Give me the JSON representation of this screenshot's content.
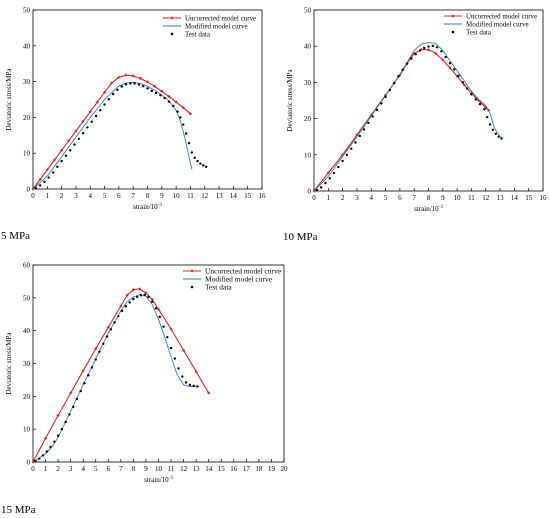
{
  "colors": {
    "uncorrected": "#e8201c",
    "modified": "#2e7bbf",
    "test": "#000000",
    "axis": "#000000"
  },
  "chart_data": [
    {
      "type": "line",
      "caption": "5 MPa",
      "xlabel": "strain/10",
      "xlabel_sup": "-3",
      "ylabel": "Deviatoric stress/MPa",
      "xlim": [
        0,
        16
      ],
      "ylim": [
        0,
        50
      ],
      "xticks": [
        0,
        1,
        2,
        3,
        4,
        5,
        6,
        7,
        8,
        9,
        10,
        11,
        12,
        13,
        14,
        15,
        16
      ],
      "yticks": [
        0,
        10,
        20,
        30,
        40,
        50
      ],
      "grid": false,
      "legend_position": "top-right",
      "series": [
        {
          "name": "Uncorrected model curve",
          "style": "line-diamond",
          "x": [
            0,
            0.5,
            1,
            1.5,
            2,
            2.5,
            3,
            3.5,
            4,
            4.5,
            5,
            5.5,
            6,
            6.5,
            7,
            7.5,
            8,
            8.5,
            9,
            9.5,
            10,
            10.5,
            11
          ],
          "y": [
            0,
            2.7,
            5.4,
            8.1,
            10.8,
            13.5,
            16.2,
            18.9,
            21.6,
            24.3,
            27,
            29.6,
            31.2,
            31.8,
            31.6,
            30.9,
            29.9,
            28.7,
            27.3,
            25.8,
            24.3,
            22.7,
            21
          ]
        },
        {
          "name": "Modified model curve",
          "style": "line",
          "x": [
            0,
            1,
            2,
            3,
            4,
            5,
            6,
            6.5,
            7,
            7.5,
            8,
            8.5,
            9,
            9.5,
            10,
            10.3,
            10.6,
            10.9,
            11.1
          ],
          "y": [
            0,
            3.6,
            9,
            14.5,
            20,
            25,
            28.8,
            29.6,
            29.8,
            29.5,
            28.7,
            27.6,
            26.2,
            24.6,
            22,
            19,
            14.5,
            9,
            5.5
          ]
        },
        {
          "name": "Test data",
          "style": "dots",
          "x": [
            0.2,
            0.5,
            0.8,
            1.1,
            1.4,
            1.7,
            2,
            2.3,
            2.6,
            2.9,
            3.2,
            3.5,
            3.8,
            4.1,
            4.4,
            4.7,
            5,
            5.3,
            5.6,
            5.9,
            6.2,
            6.5,
            6.8,
            7.1,
            7.4,
            7.7,
            8,
            8.3,
            8.6,
            8.9,
            9.2,
            9.5,
            9.8,
            10.1,
            10.3,
            10.5,
            10.7,
            10.9,
            11.1,
            11.3,
            11.5,
            11.7,
            11.9,
            12.1
          ],
          "y": [
            0.3,
            1,
            2,
            3.2,
            4.6,
            6.2,
            7.8,
            9.3,
            10.8,
            12.4,
            14,
            15.6,
            17.2,
            18.8,
            20.4,
            22,
            23.6,
            25.1,
            26.5,
            27.7,
            28.6,
            29.2,
            29.5,
            29.5,
            29.2,
            28.7,
            28.1,
            27.4,
            26.8,
            26.2,
            25.4,
            24.4,
            23.2,
            21.6,
            20,
            18,
            15.5,
            12.8,
            10.2,
            8.7,
            7.8,
            7.1,
            6.6,
            6.2
          ]
        }
      ]
    },
    {
      "type": "line",
      "caption": "10 MPa",
      "xlabel": "strain/10",
      "xlabel_sup": "-3",
      "ylabel": "Deviatoric stress/MPa",
      "xlim": [
        0,
        16
      ],
      "ylim": [
        0,
        50
      ],
      "xticks": [
        0,
        1,
        2,
        3,
        4,
        5,
        6,
        7,
        8,
        9,
        10,
        11,
        12,
        13,
        14,
        15,
        16
      ],
      "yticks": [
        0,
        10,
        20,
        30,
        40,
        50
      ],
      "grid": false,
      "legend_position": "top-right",
      "series": [
        {
          "name": "Uncorrected model curve",
          "style": "line-diamond",
          "x": [
            0,
            1,
            2,
            3,
            4,
            5,
            6,
            6.5,
            7,
            7.5,
            8,
            8.5,
            9,
            9.5,
            10,
            10.5,
            11,
            11.5,
            12,
            12.2
          ],
          "y": [
            0,
            5,
            10,
            15.5,
            21,
            26.5,
            32,
            35.2,
            38,
            39.1,
            39,
            38,
            36.2,
            34,
            31.7,
            29.3,
            27,
            25,
            23,
            22.3
          ]
        },
        {
          "name": "Modified model curve",
          "style": "line",
          "x": [
            0,
            1,
            2,
            3,
            4,
            5,
            6,
            6.5,
            7,
            7.5,
            8,
            8.5,
            9,
            9.5,
            10,
            10.5,
            11,
            11.5,
            12,
            12.3,
            12.6,
            12.9,
            13.1
          ],
          "y": [
            0,
            4,
            9.5,
            15,
            20.7,
            26.4,
            32.2,
            35.5,
            38.8,
            40.6,
            41,
            40.8,
            38.8,
            36,
            33.2,
            30.4,
            27.6,
            25.3,
            23.6,
            21.5,
            17.5,
            15.5,
            14.5
          ]
        },
        {
          "name": "Test data",
          "style": "dots",
          "x": [
            0.2,
            0.5,
            0.8,
            1.1,
            1.4,
            1.7,
            2,
            2.3,
            2.6,
            2.9,
            3.2,
            3.5,
            3.8,
            4.1,
            4.4,
            4.7,
            5,
            5.3,
            5.6,
            5.9,
            6.2,
            6.5,
            6.8,
            7.1,
            7.4,
            7.7,
            8,
            8.3,
            8.6,
            8.9,
            9.2,
            9.5,
            9.8,
            10.1,
            10.4,
            10.7,
            11,
            11.3,
            11.6,
            11.9,
            12.1,
            12.3,
            12.5,
            12.7,
            12.9,
            13.1
          ],
          "y": [
            0.3,
            1,
            2.2,
            3.5,
            5,
            6.6,
            8.3,
            10,
            11.7,
            13.4,
            15.2,
            17,
            18.8,
            20.6,
            22.4,
            24.2,
            26,
            27.9,
            29.8,
            31.7,
            33.5,
            35.2,
            36.6,
            37.8,
            38.8,
            39.5,
            39.9,
            40.1,
            39.7,
            38.6,
            37,
            35.3,
            33.6,
            31.8,
            30,
            28.3,
            26.7,
            25.3,
            24,
            22.6,
            20.4,
            18.4,
            16.9,
            15.8,
            15,
            14.5
          ]
        }
      ]
    },
    {
      "type": "line",
      "caption": "15 MPa",
      "xlabel": "strain/10",
      "xlabel_sup": "-3",
      "ylabel": "Deviatoric stress/MPa",
      "xlim": [
        0,
        20
      ],
      "ylim": [
        0,
        60
      ],
      "xticks": [
        0,
        1,
        2,
        3,
        4,
        5,
        6,
        7,
        8,
        9,
        10,
        11,
        12,
        13,
        14,
        15,
        16,
        17,
        18,
        19,
        20
      ],
      "yticks": [
        0,
        10,
        20,
        30,
        40,
        50,
        60
      ],
      "grid": false,
      "legend_position": "top-right",
      "series": [
        {
          "name": "Uncorrected model curve",
          "style": "line-diamond",
          "x": [
            0,
            1,
            2,
            3,
            4,
            5,
            6,
            7,
            7.5,
            8,
            8.5,
            9,
            9.5,
            10,
            11,
            12,
            13,
            14
          ],
          "y": [
            0,
            7.2,
            14.2,
            21,
            27.8,
            34.5,
            41,
            47.5,
            50.8,
            52.5,
            52.7,
            51.5,
            49.5,
            46.5,
            40.5,
            34,
            27.5,
            21
          ]
        },
        {
          "name": "Modified model curve",
          "style": "line",
          "x": [
            0,
            1,
            1.5,
            2,
            3,
            4,
            5,
            6,
            7,
            7.5,
            8,
            8.5,
            9,
            9.5,
            10,
            10.5,
            11,
            11.5,
            12,
            12.5,
            13
          ],
          "y": [
            0,
            2.5,
            4.5,
            7.5,
            15.5,
            23.5,
            31.5,
            39.2,
            46,
            48.8,
            50.2,
            51,
            50.5,
            48,
            43.5,
            38,
            32,
            26.5,
            23.5,
            23,
            23
          ]
        },
        {
          "name": "Test data",
          "style": "dots",
          "x": [
            0.2,
            0.5,
            0.8,
            1.1,
            1.4,
            1.7,
            2,
            2.3,
            2.6,
            2.9,
            3.2,
            3.5,
            3.8,
            4.1,
            4.4,
            4.7,
            5,
            5.3,
            5.6,
            5.9,
            6.2,
            6.5,
            6.8,
            7.1,
            7.4,
            7.7,
            8,
            8.3,
            8.6,
            8.9,
            9.2,
            9.5,
            9.8,
            10.1,
            10.4,
            10.7,
            11,
            11.3,
            11.6,
            11.9,
            12.2,
            12.5,
            12.8,
            13.1
          ],
          "y": [
            0.3,
            1,
            2,
            3.2,
            4.6,
            6.2,
            8,
            10,
            12.2,
            14.5,
            16.8,
            19.2,
            21.6,
            24,
            26.4,
            28.8,
            31.2,
            33.6,
            36,
            38.2,
            40.4,
            42.5,
            44.4,
            46,
            47.4,
            48.6,
            49.6,
            50.3,
            50.8,
            50.9,
            50.3,
            48.8,
            46.8,
            44.2,
            41.2,
            38,
            34.7,
            31.5,
            28.5,
            26,
            24.2,
            23.5,
            23.2,
            23
          ]
        }
      ]
    }
  ]
}
